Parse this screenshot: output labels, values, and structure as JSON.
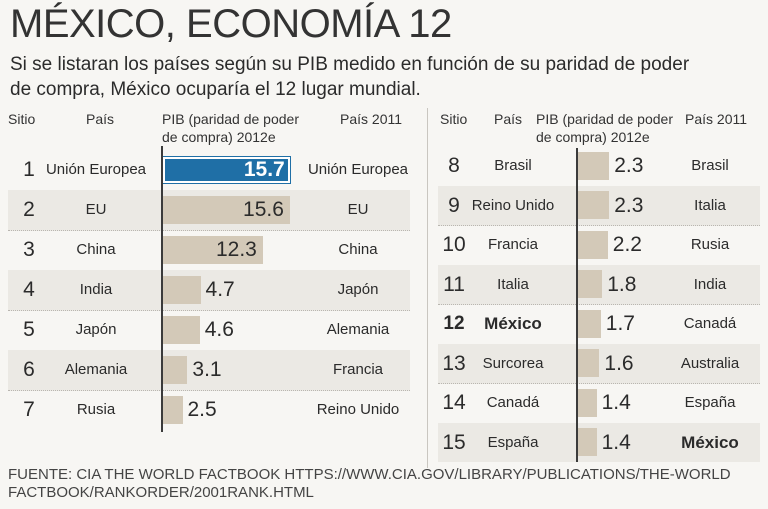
{
  "title": "MÉXICO, ECONOMÍA 12",
  "subtitle": "Si se listaran los países según su PIB medido en función de su paridad de poder de  compra, México ocuparía el 12 lugar mundial.",
  "headers": {
    "rank": "Sitio",
    "country": "País",
    "gdp": "PIB (paridad de poder de compra) 2012e",
    "country2011": "País 2011"
  },
  "footer": "FUENTE: CIA THE WORLD FACTBOOK  HTTPS://WWW.CIA.GOV/LIBRARY/PUBLICATIONS/THE-WORLD FACTBOOK/RANKORDER/2001RANK.HTML",
  "colors": {
    "bar": "#d3c9b8",
    "highlight_bar": "#1f6fa6",
    "axis": "#3b3b3b"
  },
  "chart_data": {
    "type": "bar",
    "orientation": "horizontal",
    "unit": "",
    "rows": [
      {
        "rank": "1",
        "country": "Unión Europea",
        "value": 15.7,
        "label": "15.7",
        "country2011": "Unión Europea",
        "highlight": true
      },
      {
        "rank": "2",
        "country": "EU",
        "value": 15.6,
        "label": "15.6",
        "country2011": "EU"
      },
      {
        "rank": "3",
        "country": "China",
        "value": 12.3,
        "label": "12.3",
        "country2011": "China"
      },
      {
        "rank": "4",
        "country": "India",
        "value": 4.7,
        "label": "4.7",
        "country2011": "Japón"
      },
      {
        "rank": "5",
        "country": "Japón",
        "value": 4.6,
        "label": "4.6",
        "country2011": "Alemania"
      },
      {
        "rank": "6",
        "country": "Alemania",
        "value": 3.1,
        "label": "3.1",
        "country2011": "Francia"
      },
      {
        "rank": "7",
        "country": "Rusia",
        "value": 2.5,
        "label": "2.5",
        "country2011": "Reino Unido"
      },
      {
        "rank": "8",
        "country": "Brasil",
        "value": 2.3,
        "label": "2.3",
        "country2011": "Brasil"
      },
      {
        "rank": "9",
        "country": "Reino Unido",
        "value": 2.3,
        "label": "2.3",
        "country2011": "Italia"
      },
      {
        "rank": "10",
        "country": "Francia",
        "value": 2.2,
        "label": "2.2",
        "country2011": "Rusia"
      },
      {
        "rank": "11",
        "country": "Italia",
        "value": 1.8,
        "label": "1.8",
        "country2011": "India"
      },
      {
        "rank": "12",
        "country": "México",
        "value": 1.7,
        "label": "1.7",
        "country2011": "Canadá",
        "bold_country": true
      },
      {
        "rank": "13",
        "country": "Surcorea",
        "value": 1.6,
        "label": "1.6",
        "country2011": "Australia"
      },
      {
        "rank": "14",
        "country": "Canadá",
        "value": 1.4,
        "label": "1.4",
        "country2011": "España"
      },
      {
        "rank": "15",
        "country": "España",
        "value": 1.4,
        "label": "1.4",
        "country2011": "México",
        "bold_country2011": true
      }
    ]
  }
}
